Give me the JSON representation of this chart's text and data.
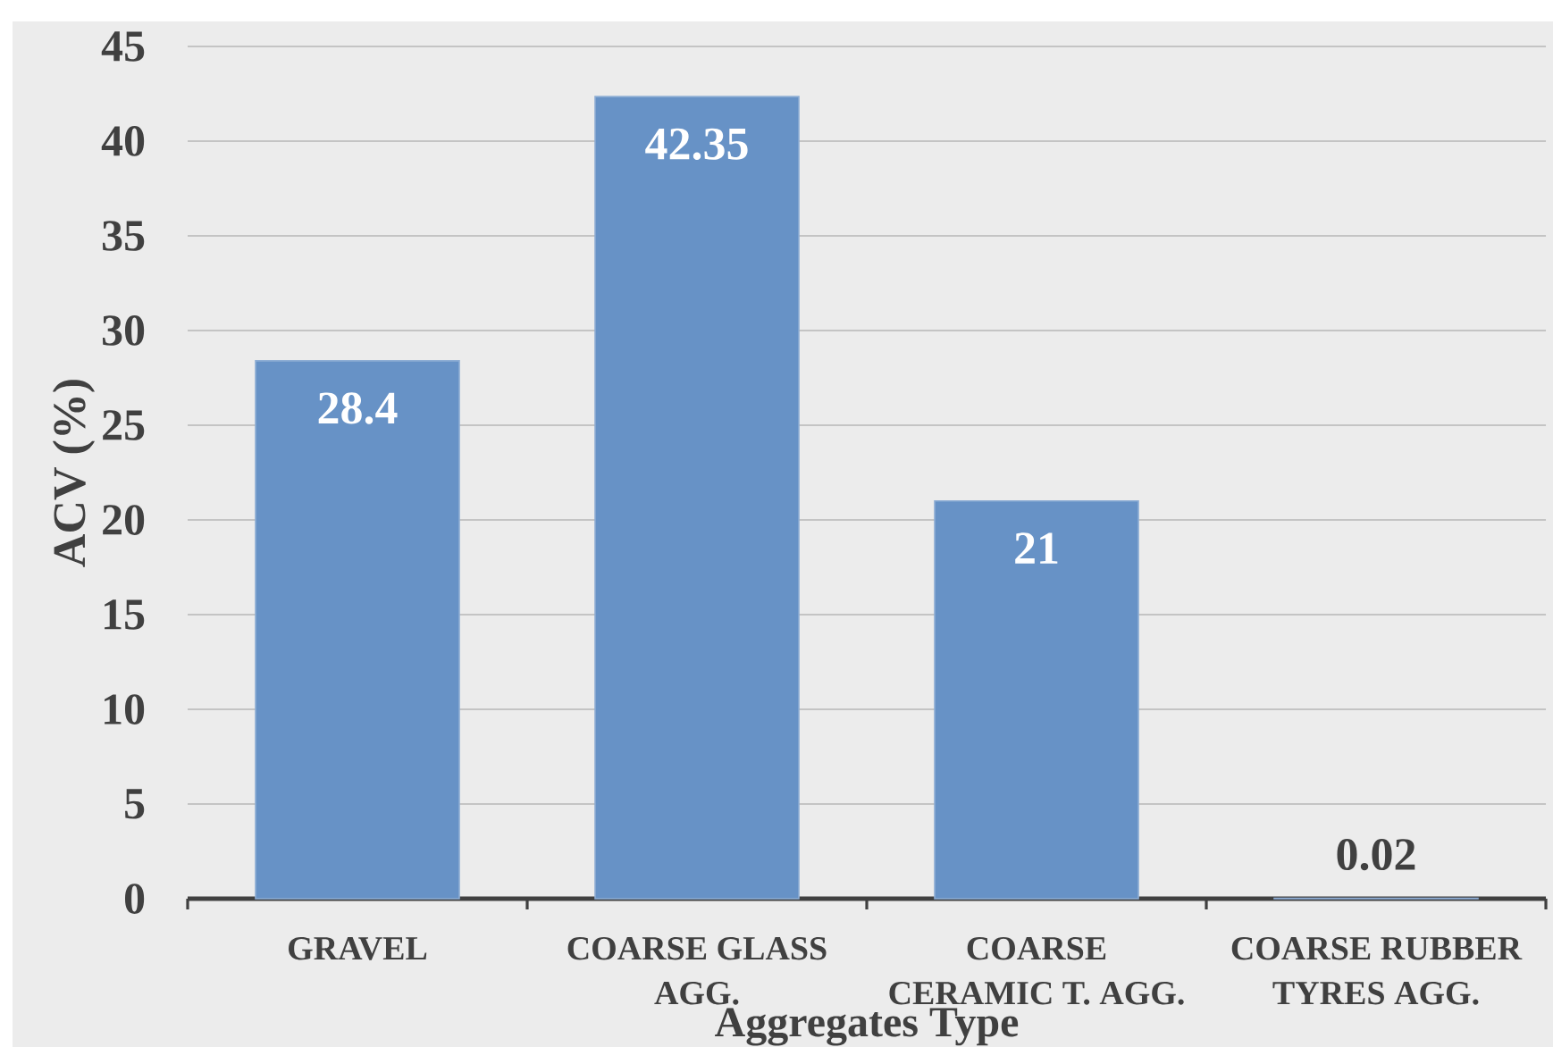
{
  "chart_data": {
    "type": "bar",
    "xlabel": "Aggregates Type",
    "ylabel": "ACV (%)",
    "categories": [
      "GRAVEL",
      "COARSE GLASS AGG.",
      "COARSE CERAMIC T. AGG.",
      "COARSE RUBBER TYRES AGG."
    ],
    "values": [
      28.4,
      42.35,
      21,
      0.02
    ],
    "color": "#6792c6",
    "ylim": [
      0,
      45
    ],
    "yticks": [
      0,
      5,
      10,
      15,
      20,
      25,
      30,
      35,
      40,
      45
    ],
    "grid": "y",
    "data_labels": true
  }
}
